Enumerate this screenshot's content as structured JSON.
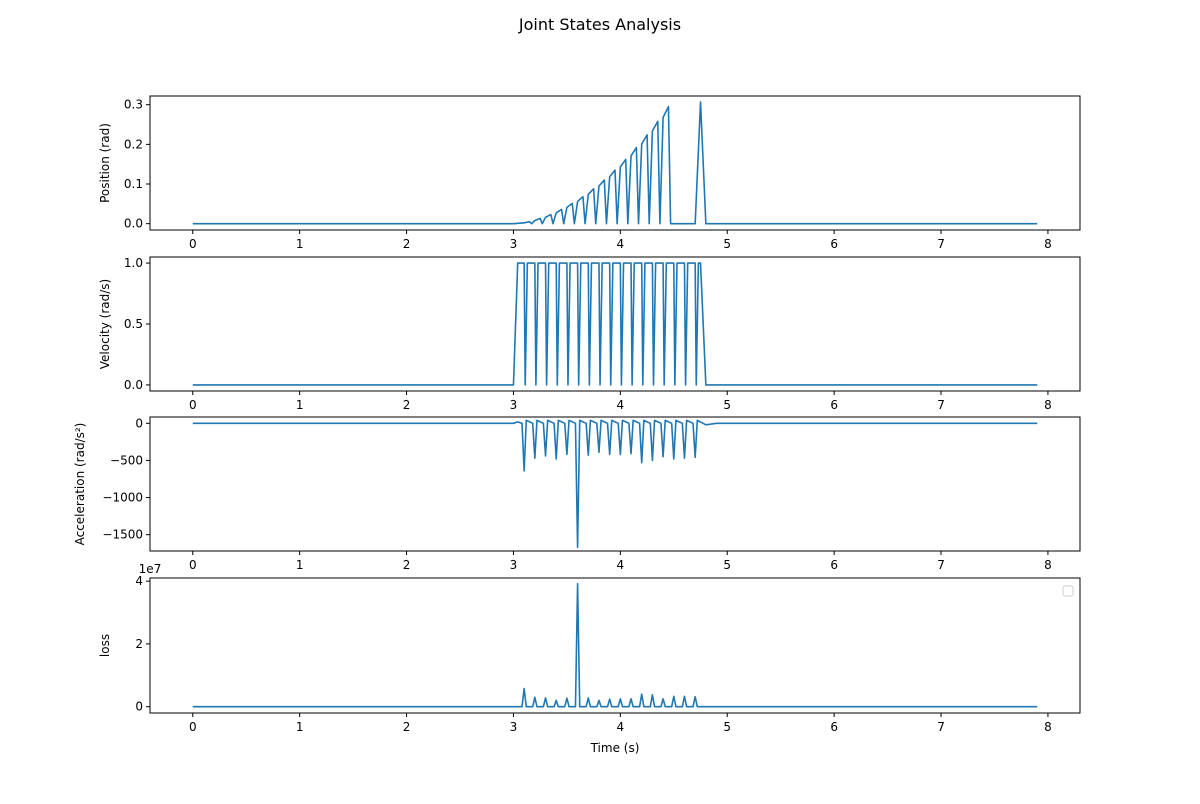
{
  "figure": {
    "title": "Joint States Analysis"
  },
  "chart_data": [
    {
      "type": "line",
      "ylabel": "Position (rad)",
      "xlabel": "",
      "xlim": [
        -0.4,
        8.3
      ],
      "ylim": [
        -0.016,
        0.322
      ],
      "xticks": [
        "0",
        "1",
        "2",
        "3",
        "4",
        "5",
        "6",
        "7",
        "8"
      ],
      "yticks": [
        "0.0",
        "0.1",
        "0.2",
        "0.3"
      ],
      "grid": false,
      "series": [
        {
          "color": "#1f77b4",
          "x": [
            0,
            3.0,
            3.1,
            3.15,
            3.17,
            3.2,
            3.25,
            3.27,
            3.3,
            3.35,
            3.37,
            3.4,
            3.45,
            3.47,
            3.5,
            3.55,
            3.57,
            3.6,
            3.65,
            3.67,
            3.7,
            3.75,
            3.77,
            3.8,
            3.85,
            3.87,
            3.9,
            3.95,
            3.97,
            4.0,
            4.05,
            4.07,
            4.1,
            4.15,
            4.17,
            4.2,
            4.25,
            4.27,
            4.3,
            4.35,
            4.37,
            4.4,
            4.45,
            4.47,
            4.5,
            4.55,
            4.57,
            4.6,
            4.65,
            4.67,
            4.7,
            4.75,
            4.8,
            7.9
          ],
          "y": [
            0,
            0,
            0.002,
            0.005,
            0,
            0.008,
            0.013,
            0,
            0.016,
            0.023,
            0,
            0.027,
            0.036,
            0,
            0.041,
            0.051,
            0,
            0.056,
            0.068,
            0,
            0.074,
            0.088,
            0,
            0.095,
            0.11,
            0,
            0.118,
            0.135,
            0,
            0.143,
            0.162,
            0,
            0.171,
            0.192,
            0,
            0.201,
            0.224,
            0,
            0.234,
            0.258,
            0,
            0.268,
            0.295,
            0,
            0.0,
            0.0,
            0,
            0.0,
            0.0,
            0,
            0.0,
            0.307,
            0,
            0
          ]
        }
      ]
    },
    {
      "type": "line",
      "ylabel": "Velocity (rad/s)",
      "xlabel": "",
      "xlim": [
        -0.4,
        8.3
      ],
      "ylim": [
        -0.05,
        1.05
      ],
      "xticks": [
        "0",
        "1",
        "2",
        "3",
        "4",
        "5",
        "6",
        "7",
        "8"
      ],
      "yticks": [
        "0.0",
        "0.5",
        "1.0"
      ],
      "grid": false,
      "series": [
        {
          "color": "#1f77b4",
          "x": [
            0,
            3.0,
            3.04,
            3.1,
            3.11,
            3.13,
            3.2,
            3.21,
            3.23,
            3.3,
            3.31,
            3.33,
            3.4,
            3.41,
            3.43,
            3.5,
            3.51,
            3.53,
            3.6,
            3.61,
            3.63,
            3.7,
            3.71,
            3.73,
            3.8,
            3.81,
            3.83,
            3.9,
            3.91,
            3.93,
            4.0,
            4.01,
            4.03,
            4.1,
            4.11,
            4.13,
            4.2,
            4.21,
            4.23,
            4.3,
            4.31,
            4.33,
            4.4,
            4.41,
            4.43,
            4.5,
            4.51,
            4.53,
            4.6,
            4.61,
            4.63,
            4.7,
            4.71,
            4.73,
            4.75,
            4.8,
            7.9
          ],
          "y": [
            0,
            0,
            1,
            1,
            0,
            1,
            1,
            0,
            1,
            1,
            0,
            1,
            1,
            0,
            1,
            1,
            0,
            1,
            1,
            0,
            1,
            1,
            0,
            1,
            1,
            0,
            1,
            1,
            0,
            1,
            1,
            0,
            1,
            1,
            0,
            1,
            1,
            0,
            1,
            1,
            0,
            1,
            1,
            0,
            1,
            1,
            0,
            1,
            1,
            0,
            1,
            1,
            0,
            1,
            1,
            0,
            0
          ]
        }
      ]
    },
    {
      "type": "line",
      "ylabel": "Acceleration (rad/s²)",
      "xlabel": "",
      "xlim": [
        -0.4,
        8.3
      ],
      "ylim": [
        -1720,
        85
      ],
      "xticks": [
        "0",
        "1",
        "2",
        "3",
        "4",
        "5",
        "6",
        "7",
        "8"
      ],
      "yticks": [
        "0",
        "−500",
        "−1000",
        "−1500"
      ],
      "grid": false,
      "series": [
        {
          "color": "#1f77b4",
          "x": [
            0,
            3.0,
            3.04,
            3.08,
            3.1,
            3.12,
            3.18,
            3.2,
            3.22,
            3.28,
            3.3,
            3.32,
            3.38,
            3.4,
            3.42,
            3.48,
            3.5,
            3.52,
            3.58,
            3.6,
            3.62,
            3.68,
            3.7,
            3.72,
            3.78,
            3.8,
            3.82,
            3.88,
            3.9,
            3.92,
            3.98,
            4.0,
            4.02,
            4.08,
            4.1,
            4.12,
            4.18,
            4.2,
            4.22,
            4.28,
            4.3,
            4.32,
            4.38,
            4.4,
            4.42,
            4.48,
            4.5,
            4.52,
            4.58,
            4.6,
            4.62,
            4.68,
            4.7,
            4.72,
            4.8,
            4.9,
            7.9
          ],
          "y": [
            0,
            0,
            20,
            0,
            -640,
            40,
            0,
            -470,
            40,
            0,
            -440,
            40,
            0,
            -480,
            40,
            0,
            -420,
            40,
            0,
            -1670,
            40,
            0,
            -430,
            40,
            0,
            -390,
            40,
            0,
            -420,
            40,
            0,
            -420,
            40,
            0,
            -410,
            40,
            0,
            -530,
            40,
            0,
            -500,
            40,
            0,
            -450,
            40,
            0,
            -480,
            40,
            0,
            -470,
            40,
            0,
            -460,
            40,
            -20,
            0,
            0
          ]
        }
      ]
    },
    {
      "type": "line",
      "ylabel": "loss",
      "xlabel": "Time (s)",
      "offset_text": "1e7",
      "xlim": [
        -0.4,
        8.3
      ],
      "ylim": [
        -0.2,
        4.1
      ],
      "xticks": [
        "0",
        "1",
        "2",
        "3",
        "4",
        "5",
        "6",
        "7",
        "8"
      ],
      "yticks": [
        "0",
        "2",
        "4"
      ],
      "grid": false,
      "legend": "top-right",
      "series": [
        {
          "color": "#1f77b4",
          "x": [
            0,
            3.08,
            3.1,
            3.12,
            3.18,
            3.2,
            3.22,
            3.28,
            3.3,
            3.32,
            3.38,
            3.4,
            3.42,
            3.48,
            3.5,
            3.52,
            3.58,
            3.6,
            3.62,
            3.68,
            3.7,
            3.72,
            3.78,
            3.8,
            3.82,
            3.88,
            3.9,
            3.92,
            3.98,
            4.0,
            4.02,
            4.08,
            4.1,
            4.12,
            4.18,
            4.2,
            4.22,
            4.28,
            4.3,
            4.32,
            4.38,
            4.4,
            4.42,
            4.48,
            4.5,
            4.52,
            4.58,
            4.6,
            4.62,
            4.68,
            4.7,
            4.72,
            7.9
          ],
          "y": [
            0,
            0,
            0.58,
            0,
            0,
            0.3,
            0,
            0,
            0.28,
            0,
            0,
            0.2,
            0,
            0,
            0.27,
            0,
            0,
            3.92,
            0,
            0,
            0.28,
            0,
            0,
            0.2,
            0,
            0,
            0.24,
            0,
            0,
            0.25,
            0,
            0,
            0.25,
            0,
            0,
            0.4,
            0,
            0,
            0.38,
            0,
            0,
            0.25,
            0,
            0,
            0.33,
            0,
            0,
            0.33,
            0,
            0,
            0.32,
            0,
            0
          ]
        }
      ]
    }
  ]
}
